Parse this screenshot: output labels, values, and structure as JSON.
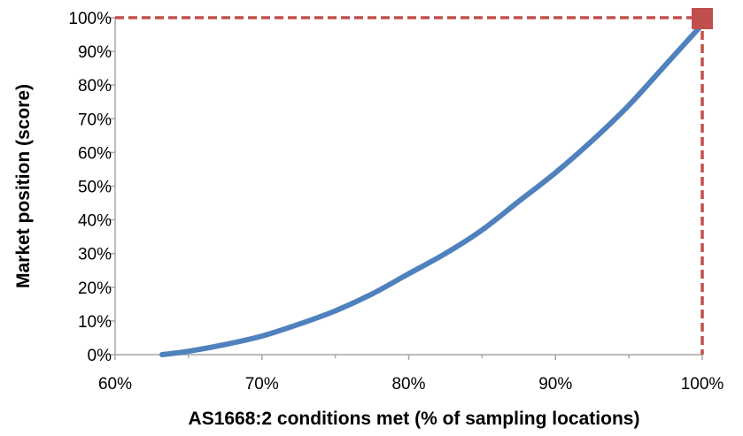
{
  "chart_data": {
    "type": "line",
    "title": "",
    "xlabel": "AS1668:2 conditions met (% of sampling locations)",
    "ylabel": "Market position (score)",
    "xlim": [
      60,
      100
    ],
    "ylim": [
      0,
      100
    ],
    "x_ticks": [
      60,
      70,
      80,
      90,
      100
    ],
    "x_tick_labels": [
      "60%",
      "70%",
      "80%",
      "90%",
      "100%"
    ],
    "y_ticks": [
      0,
      10,
      20,
      30,
      40,
      50,
      60,
      70,
      80,
      90,
      100
    ],
    "y_tick_labels": [
      "0%",
      "10%",
      "20%",
      "30%",
      "40%",
      "50%",
      "60%",
      "70%",
      "80%",
      "90%",
      "100%"
    ],
    "grid": false,
    "legend": "none",
    "series": [
      {
        "color": "#4f81bd",
        "x": [
          63.2,
          65,
          67.5,
          70,
          72.5,
          75,
          77.5,
          80,
          82.5,
          85,
          87.5,
          90,
          92.5,
          95,
          97.5,
          100
        ],
        "y": [
          0,
          1,
          3,
          5.5,
          9,
          13,
          18,
          24,
          30,
          37,
          45.5,
          54,
          63.5,
          74,
          86,
          98
        ]
      }
    ],
    "marker": {
      "x": 100,
      "y": 100,
      "shape": "square",
      "color": "#c0504d"
    },
    "reference_lines": {
      "style": "dashed",
      "color": "#c0504d",
      "x": 100,
      "y": 100
    }
  }
}
